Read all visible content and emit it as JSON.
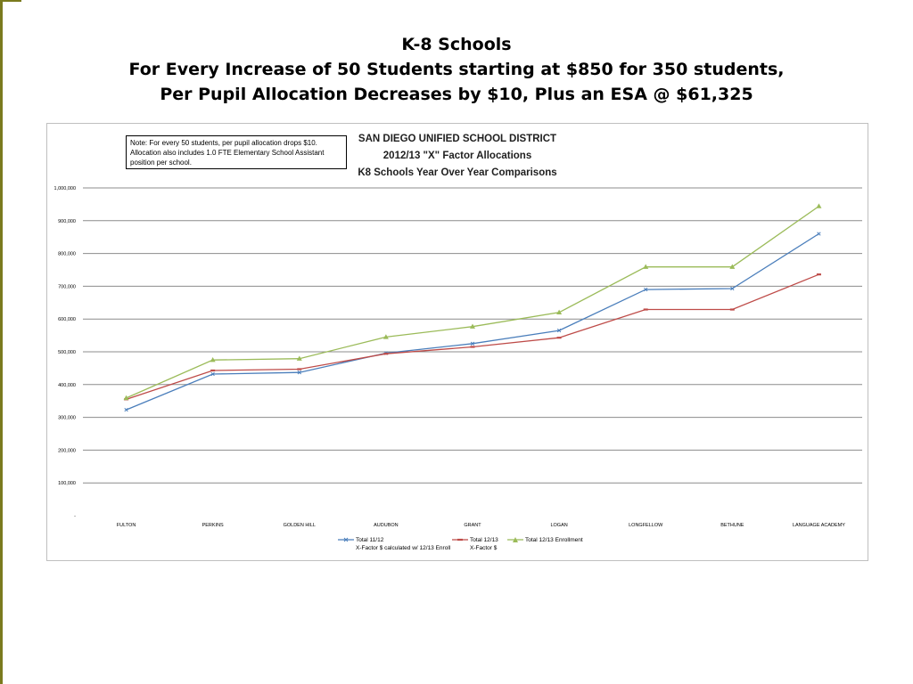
{
  "slide": {
    "title_line1": "K-8 Schools",
    "title_line2": "For Every Increase of 50 Students starting at $850 for 350 students,",
    "title_line3": "Per Pupil Allocation Decreases by $10, Plus an ESA @ $61,325",
    "accent_color": "#7a7a1e"
  },
  "note": {
    "line1": "Note: For every 50 students, per pupil allocation drops $10.",
    "line2": "Allocation also includes 1.0 FTE Elementary School Assistant",
    "line3": "position per school."
  },
  "chart_data": {
    "type": "line",
    "title_line1": "SAN DIEGO UNIFIED SCHOOL DISTRICT",
    "title_line2": "2012/13 \"X\" Factor Allocations",
    "title_line3": "K8 Schools Year Over Year Comparisons",
    "categories": [
      "FULTON",
      "PERKINS",
      "GOLDEN HILL",
      "AUDUBON",
      "GRANT",
      "LOGAN",
      "LONGFELLOW",
      "BETHUNE",
      "LANGUAGE ACADEMY"
    ],
    "ylim": [
      0,
      1000000
    ],
    "yticks": [
      {
        "value": 0,
        "label": "-"
      },
      {
        "value": 100000,
        "label": "100,000"
      },
      {
        "value": 200000,
        "label": "200,000"
      },
      {
        "value": 300000,
        "label": "300,000"
      },
      {
        "value": 400000,
        "label": "400,000"
      },
      {
        "value": 500000,
        "label": "500,000"
      },
      {
        "value": 600000,
        "label": "600,000"
      },
      {
        "value": 700000,
        "label": "700,000"
      },
      {
        "value": 800000,
        "label": "800,000"
      },
      {
        "value": 900000,
        "label": "900,000"
      },
      {
        "value": 1000000,
        "label": "1,000,000"
      }
    ],
    "grid": true,
    "legend_position": "bottom",
    "series": [
      {
        "name_line1": "Total 11/12",
        "name_line2": "X-Factor $ calculated w/ 12/13 Enroll",
        "color": "#4a7ebb",
        "marker": "x",
        "values": [
          323000,
          432000,
          437000,
          496000,
          525000,
          565000,
          690000,
          693000,
          860000
        ]
      },
      {
        "name_line1": "Total 12/13",
        "name_line2": "X-Factor $",
        "color": "#be4b48",
        "marker": "dash",
        "values": [
          355000,
          443000,
          447000,
          494000,
          515000,
          543000,
          629000,
          629000,
          736000
        ]
      },
      {
        "name_line1": "Total 12/13 Enrollment",
        "name_line2": "",
        "color": "#9bbb59",
        "marker": "triangle",
        "values": [
          359000,
          475000,
          479000,
          545000,
          577000,
          620000,
          759000,
          759000,
          944000
        ]
      }
    ]
  }
}
